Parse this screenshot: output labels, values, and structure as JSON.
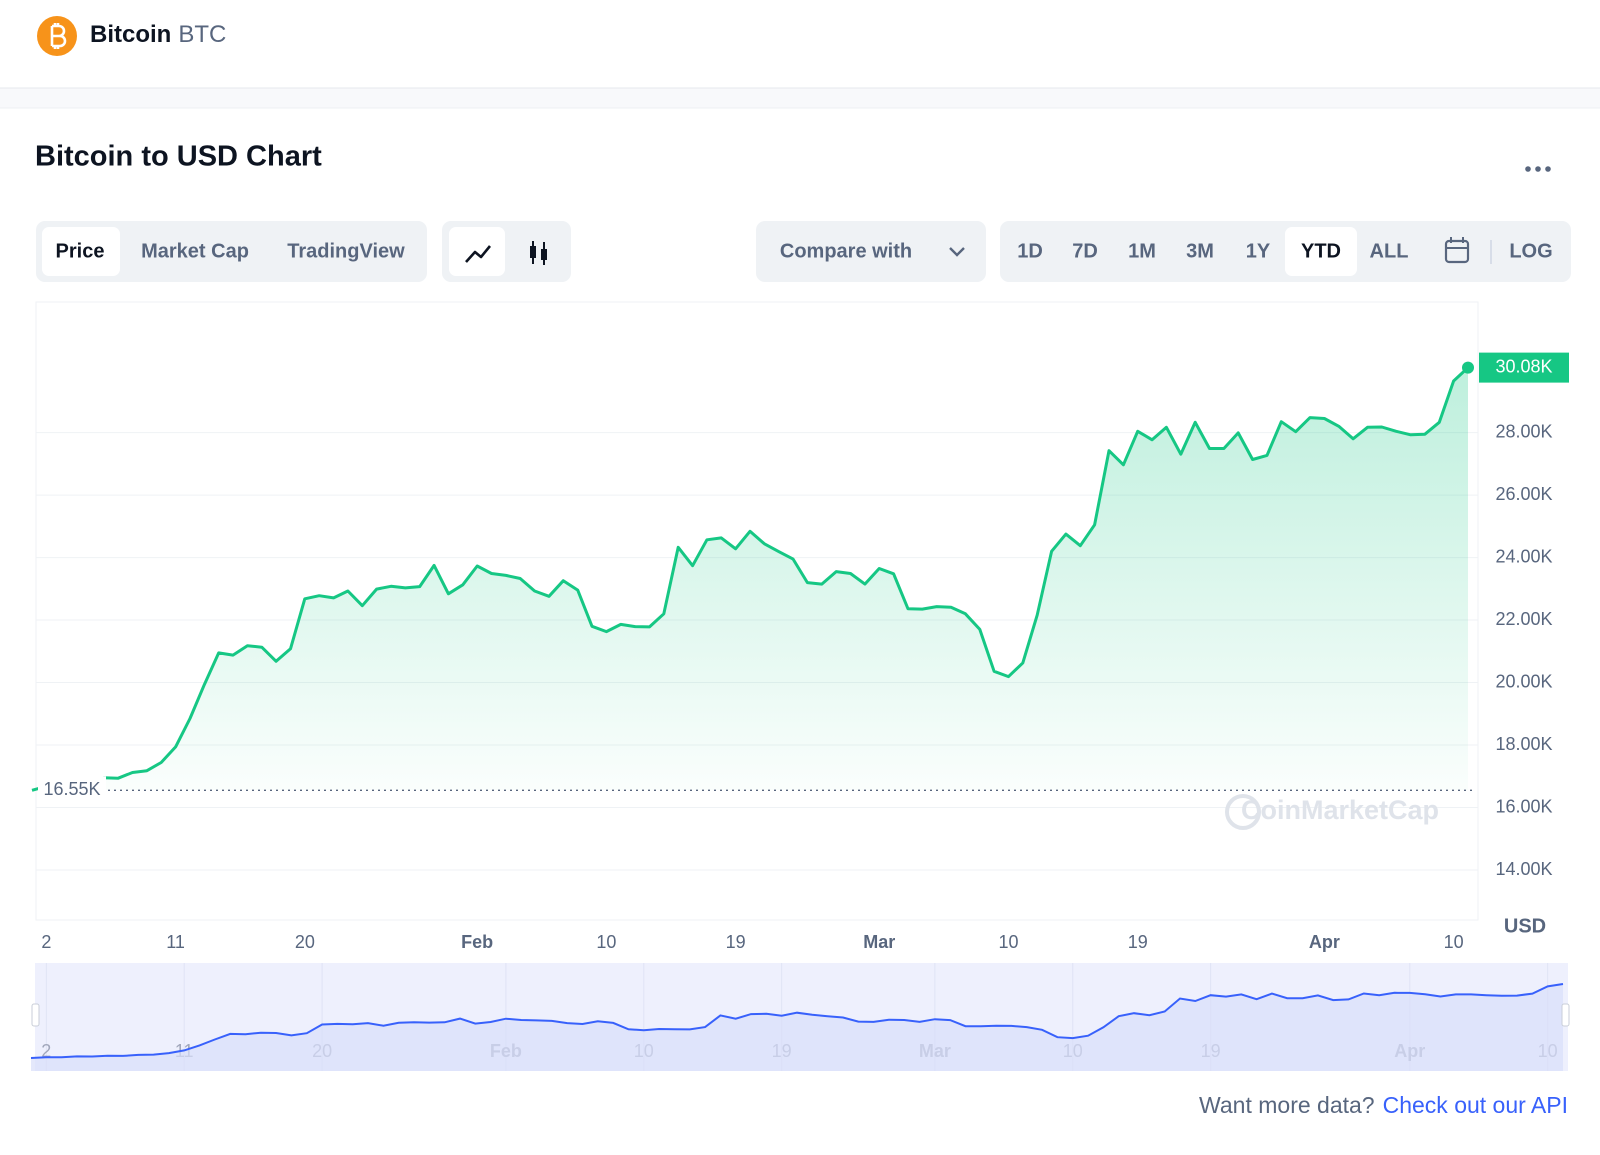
{
  "header": {
    "name": "Bitcoin",
    "symbol": "BTC"
  },
  "title": "Bitcoin to USD Chart",
  "tabs": [
    "Price",
    "Market Cap",
    "TradingView"
  ],
  "compare": "Compare with",
  "ranges": [
    "1D",
    "7D",
    "1M",
    "3M",
    "1Y",
    "YTD",
    "ALL"
  ],
  "log_button": "LOG",
  "watermark": "CoinMarketCap",
  "chart_data": {
    "type": "line",
    "x": [
      "Jan 1",
      "Jan 2",
      "Jan 3",
      "Jan 4",
      "Jan 5",
      "Jan 6",
      "Jan 7",
      "Jan 8",
      "Jan 9",
      "Jan 10",
      "Jan 11",
      "Jan 12",
      "Jan 13",
      "Jan 14",
      "Jan 15",
      "Jan 16",
      "Jan 17",
      "Jan 18",
      "Jan 19",
      "Jan 20",
      "Jan 21",
      "Jan 22",
      "Jan 23",
      "Jan 24",
      "Jan 25",
      "Jan 26",
      "Jan 27",
      "Jan 28",
      "Jan 29",
      "Jan 30",
      "Jan 31",
      "Feb 1",
      "Feb 2",
      "Feb 3",
      "Feb 4",
      "Feb 5",
      "Feb 6",
      "Feb 7",
      "Feb 8",
      "Feb 9",
      "Feb 10",
      "Feb 11",
      "Feb 12",
      "Feb 13",
      "Feb 14",
      "Feb 15",
      "Feb 16",
      "Feb 17",
      "Feb 18",
      "Feb 19",
      "Feb 20",
      "Feb 21",
      "Feb 22",
      "Feb 23",
      "Feb 24",
      "Feb 25",
      "Feb 26",
      "Feb 27",
      "Feb 28",
      "Mar 1",
      "Mar 2",
      "Mar 3",
      "Mar 4",
      "Mar 5",
      "Mar 6",
      "Mar 7",
      "Mar 8",
      "Mar 9",
      "Mar 10",
      "Mar 11",
      "Mar 12",
      "Mar 13",
      "Mar 14",
      "Mar 15",
      "Mar 16",
      "Mar 17",
      "Mar 18",
      "Mar 19",
      "Mar 20",
      "Mar 21",
      "Mar 22",
      "Mar 23",
      "Mar 24",
      "Mar 25",
      "Mar 26",
      "Mar 27",
      "Mar 28",
      "Mar 29",
      "Mar 30",
      "Mar 31",
      "Apr 1",
      "Apr 2",
      "Apr 3",
      "Apr 4",
      "Apr 5",
      "Apr 6",
      "Apr 7",
      "Apr 8",
      "Apr 9",
      "Apr 10",
      "Apr 11"
    ],
    "values": [
      16550,
      16680,
      16670,
      16850,
      16830,
      16950,
      16940,
      17120,
      17180,
      17440,
      17940,
      18850,
      19930,
      20950,
      20880,
      21180,
      21130,
      20680,
      21080,
      22680,
      22780,
      22710,
      22930,
      22460,
      22990,
      23080,
      23030,
      23070,
      23750,
      22840,
      23130,
      23730,
      23490,
      23430,
      23330,
      22930,
      22760,
      23260,
      22960,
      21800,
      21630,
      21860,
      21790,
      21780,
      22200,
      24330,
      23740,
      24570,
      24630,
      24280,
      24840,
      24440,
      24190,
      23950,
      23200,
      23150,
      23550,
      23490,
      23150,
      23650,
      23480,
      22360,
      22350,
      22430,
      22410,
      22200,
      21700,
      20360,
      20190,
      20630,
      22160,
      24200,
      24750,
      24380,
      25050,
      27420,
      26970,
      28040,
      27770,
      28170,
      27310,
      28330,
      27490,
      27490,
      27990,
      27140,
      27270,
      28350,
      28030,
      28480,
      28450,
      28200,
      27800,
      28170,
      28180,
      28040,
      27930,
      27950,
      28330,
      29650,
      30080
    ],
    "color": "#16c784",
    "ylim": [
      12400,
      32180
    ],
    "yticks": [
      {
        "value": 14000,
        "label": "14.00K"
      },
      {
        "value": 16000,
        "label": "16.00K"
      },
      {
        "value": 18000,
        "label": "18.00K"
      },
      {
        "value": 20000,
        "label": "20.00K"
      },
      {
        "value": 22000,
        "label": "22.00K"
      },
      {
        "value": 24000,
        "label": "24.00K"
      },
      {
        "value": 26000,
        "label": "26.00K"
      },
      {
        "value": 28000,
        "label": "28.00K"
      }
    ],
    "xticks": [
      {
        "value": "Jan 2",
        "label": "2"
      },
      {
        "value": "Jan 11",
        "label": "11"
      },
      {
        "value": "Jan 20",
        "label": "20"
      },
      {
        "value": "Feb 1",
        "label": "Feb"
      },
      {
        "value": "Feb 10",
        "label": "10"
      },
      {
        "value": "Feb 19",
        "label": "19"
      },
      {
        "value": "Mar 1",
        "label": "Mar"
      },
      {
        "value": "Mar 10",
        "label": "10"
      },
      {
        "value": "Mar 19",
        "label": "19"
      },
      {
        "value": "Apr 1",
        "label": "Apr"
      },
      {
        "value": "Apr 10",
        "label": "10"
      }
    ],
    "y_unit": "USD",
    "grid": true,
    "annotations": [
      {
        "value": 30080,
        "label": "30.08K"
      },
      {
        "value": 16550,
        "label": "16.55K"
      }
    ]
  },
  "footer": {
    "prompt": "Want more data?",
    "link": "Check out our API"
  }
}
